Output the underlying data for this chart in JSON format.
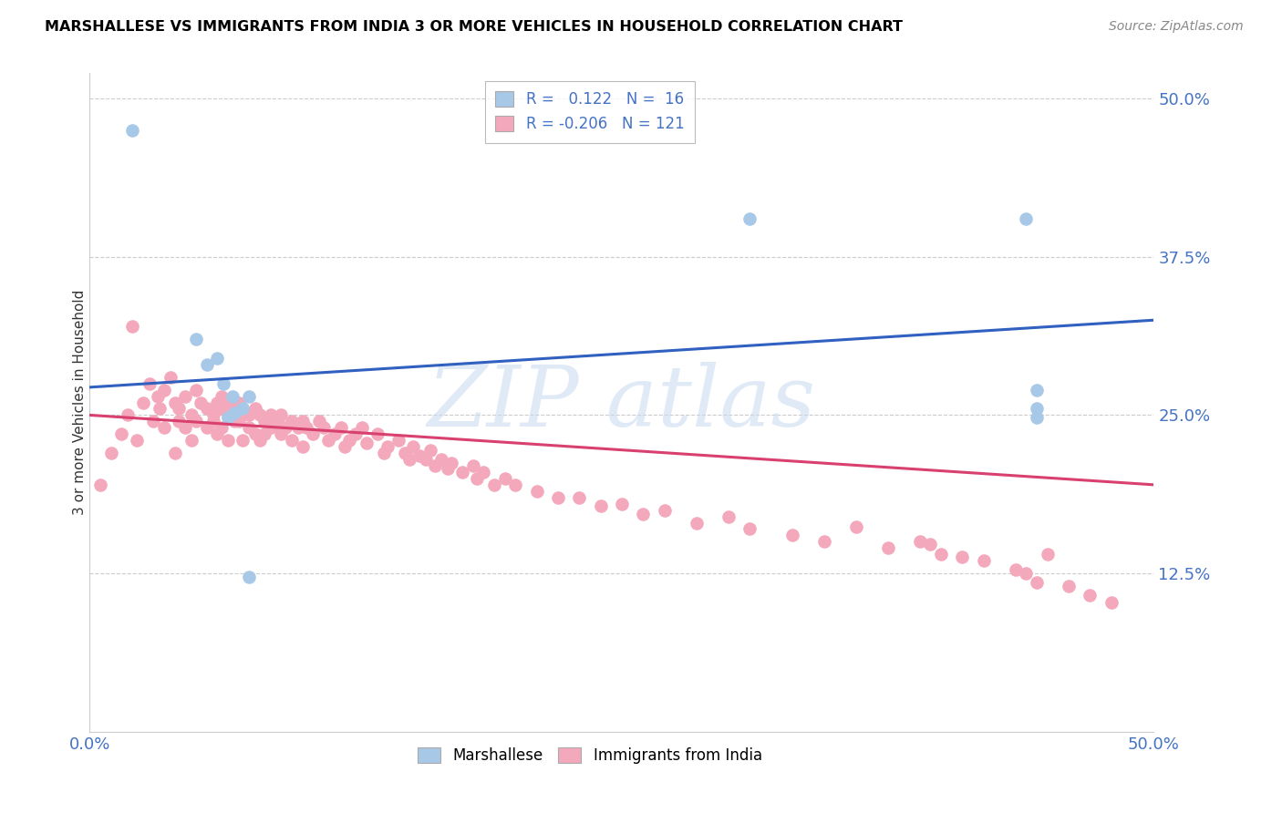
{
  "title": "MARSHALLESE VS IMMIGRANTS FROM INDIA 3 OR MORE VEHICLES IN HOUSEHOLD CORRELATION CHART",
  "source": "Source: ZipAtlas.com",
  "ylabel_label": "3 or more Vehicles in Household",
  "legend_labels": [
    "Marshallese",
    "Immigrants from India"
  ],
  "R_marshallese": 0.122,
  "N_marshallese": 16,
  "R_india": -0.206,
  "N_india": 121,
  "marshallese_color": "#a8c8e8",
  "india_color": "#f4a8bc",
  "trend_blue": "#3060c0",
  "trend_pink": "#d84070",
  "xlim": [
    0.0,
    0.5
  ],
  "ylim": [
    0.0,
    0.52
  ],
  "marshallese_x": [
    0.02,
    0.05,
    0.055,
    0.06,
    0.063,
    0.065,
    0.067,
    0.068,
    0.072,
    0.075,
    0.075,
    0.31,
    0.44,
    0.445,
    0.445,
    0.445
  ],
  "marshallese_y": [
    0.475,
    0.31,
    0.29,
    0.295,
    0.275,
    0.248,
    0.265,
    0.252,
    0.255,
    0.265,
    0.122,
    0.405,
    0.405,
    0.27,
    0.255,
    0.248
  ],
  "india_x": [
    0.005,
    0.01,
    0.015,
    0.018,
    0.02,
    0.022,
    0.025,
    0.028,
    0.03,
    0.032,
    0.033,
    0.035,
    0.035,
    0.038,
    0.04,
    0.04,
    0.042,
    0.042,
    0.045,
    0.045,
    0.048,
    0.048,
    0.05,
    0.05,
    0.052,
    0.055,
    0.055,
    0.058,
    0.058,
    0.06,
    0.06,
    0.062,
    0.062,
    0.062,
    0.065,
    0.065,
    0.065,
    0.068,
    0.068,
    0.07,
    0.07,
    0.072,
    0.072,
    0.075,
    0.075,
    0.078,
    0.078,
    0.08,
    0.08,
    0.082,
    0.082,
    0.085,
    0.085,
    0.088,
    0.09,
    0.09,
    0.092,
    0.095,
    0.095,
    0.098,
    0.1,
    0.1,
    0.102,
    0.105,
    0.108,
    0.11,
    0.112,
    0.115,
    0.118,
    0.12,
    0.122,
    0.125,
    0.128,
    0.13,
    0.135,
    0.138,
    0.14,
    0.145,
    0.148,
    0.15,
    0.152,
    0.155,
    0.158,
    0.16,
    0.162,
    0.165,
    0.168,
    0.17,
    0.175,
    0.18,
    0.182,
    0.185,
    0.19,
    0.195,
    0.2,
    0.21,
    0.22,
    0.23,
    0.24,
    0.25,
    0.26,
    0.27,
    0.285,
    0.3,
    0.31,
    0.33,
    0.345,
    0.36,
    0.375,
    0.39,
    0.395,
    0.4,
    0.41,
    0.42,
    0.435,
    0.44,
    0.445,
    0.45,
    0.46,
    0.47,
    0.48
  ],
  "india_y": [
    0.195,
    0.22,
    0.235,
    0.25,
    0.32,
    0.23,
    0.26,
    0.275,
    0.245,
    0.265,
    0.255,
    0.27,
    0.24,
    0.28,
    0.26,
    0.22,
    0.255,
    0.245,
    0.265,
    0.24,
    0.25,
    0.23,
    0.27,
    0.245,
    0.26,
    0.255,
    0.24,
    0.25,
    0.245,
    0.26,
    0.235,
    0.255,
    0.265,
    0.24,
    0.26,
    0.25,
    0.23,
    0.255,
    0.245,
    0.26,
    0.245,
    0.255,
    0.23,
    0.25,
    0.24,
    0.255,
    0.235,
    0.25,
    0.23,
    0.245,
    0.235,
    0.25,
    0.24,
    0.245,
    0.25,
    0.235,
    0.24,
    0.245,
    0.23,
    0.24,
    0.245,
    0.225,
    0.24,
    0.235,
    0.245,
    0.24,
    0.23,
    0.235,
    0.24,
    0.225,
    0.23,
    0.235,
    0.24,
    0.228,
    0.235,
    0.22,
    0.225,
    0.23,
    0.22,
    0.215,
    0.225,
    0.218,
    0.215,
    0.222,
    0.21,
    0.215,
    0.208,
    0.212,
    0.205,
    0.21,
    0.2,
    0.205,
    0.195,
    0.2,
    0.195,
    0.19,
    0.185,
    0.185,
    0.178,
    0.18,
    0.172,
    0.175,
    0.165,
    0.17,
    0.16,
    0.155,
    0.15,
    0.162,
    0.145,
    0.15,
    0.148,
    0.14,
    0.138,
    0.135,
    0.128,
    0.125,
    0.118,
    0.14,
    0.115,
    0.108,
    0.102
  ]
}
